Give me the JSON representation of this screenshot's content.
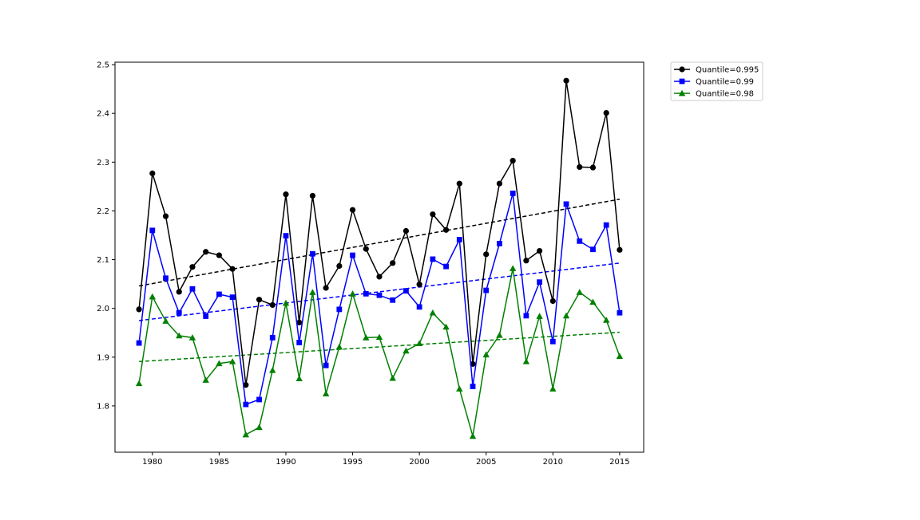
{
  "chart_data": {
    "type": "line",
    "title": "",
    "xlabel": "",
    "ylabel": "",
    "xlim": [
      1977.2,
      2016.8
    ],
    "ylim": [
      1.705,
      2.505
    ],
    "xticks": [
      1980,
      1985,
      1990,
      1995,
      2000,
      2005,
      2010,
      2015
    ],
    "yticks": [
      1.8,
      1.9,
      2.0,
      2.1,
      2.2,
      2.3,
      2.4,
      2.5
    ],
    "grid": false,
    "legend_position": "outside-top-right",
    "x": [
      1979,
      1980,
      1981,
      1982,
      1983,
      1984,
      1985,
      1986,
      1987,
      1988,
      1989,
      1990,
      1991,
      1992,
      1993,
      1994,
      1995,
      1996,
      1997,
      1998,
      1999,
      2000,
      2001,
      2002,
      2003,
      2004,
      2005,
      2006,
      2007,
      2008,
      2009,
      2010,
      2011,
      2012,
      2013,
      2014,
      2015
    ],
    "series": [
      {
        "name": "Quantile=0.995",
        "color": "#000000",
        "marker": "circle",
        "values": [
          1.998,
          2.277,
          2.189,
          2.034,
          2.085,
          2.116,
          2.109,
          2.081,
          1.843,
          2.018,
          2.007,
          2.234,
          1.971,
          2.231,
          2.042,
          2.087,
          2.202,
          2.122,
          2.065,
          2.093,
          2.159,
          2.049,
          2.193,
          2.161,
          2.256,
          1.886,
          2.111,
          2.256,
          2.303,
          2.098,
          2.118,
          2.015,
          2.467,
          2.29,
          2.289,
          2.401,
          2.12
        ],
        "trend": [
          2.046,
          2.224
        ]
      },
      {
        "name": "Quantile=0.99",
        "color": "#0000ff",
        "marker": "square",
        "values": [
          1.929,
          2.16,
          2.062,
          1.991,
          2.04,
          1.984,
          2.029,
          2.023,
          1.803,
          1.813,
          1.94,
          2.149,
          1.93,
          2.112,
          1.883,
          1.998,
          2.109,
          2.03,
          2.027,
          2.017,
          2.036,
          2.003,
          2.101,
          2.086,
          2.141,
          1.84,
          2.037,
          2.133,
          2.236,
          1.985,
          2.054,
          1.932,
          2.214,
          2.138,
          2.121,
          2.171,
          1.991
        ],
        "trend": [
          1.975,
          2.093
        ]
      },
      {
        "name": "Quantile=0.98",
        "color": "#008000",
        "marker": "triangle",
        "values": [
          1.846,
          2.024,
          1.974,
          1.944,
          1.94,
          1.853,
          1.887,
          1.891,
          1.741,
          1.756,
          1.873,
          2.011,
          1.856,
          2.033,
          1.825,
          1.921,
          2.03,
          1.94,
          1.941,
          1.857,
          1.913,
          1.928,
          1.991,
          1.962,
          1.835,
          1.738,
          1.905,
          1.945,
          2.082,
          1.891,
          1.984,
          1.835,
          1.985,
          2.033,
          2.013,
          1.976,
          1.902
        ],
        "trend": [
          1.891,
          1.951
        ]
      }
    ]
  }
}
